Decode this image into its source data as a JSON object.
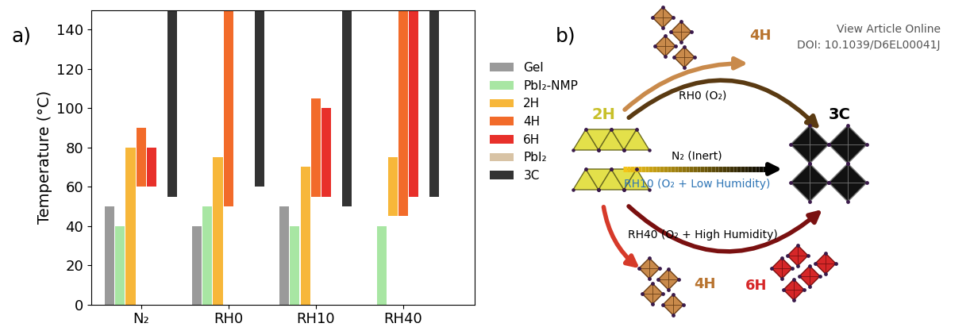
{
  "chart_data": {
    "type": "bar",
    "panel_label": "a)",
    "y_label": "Temperature (°C)",
    "categories": [
      "N₂",
      "RH0",
      "RH10",
      "RH40"
    ],
    "ylim": [
      0,
      150
    ],
    "yticks": [
      0,
      20,
      40,
      60,
      80,
      100,
      120,
      140
    ],
    "legend": "right",
    "series": [
      {
        "name": "Gel",
        "color": "#9a9a9a",
        "values": [
          [
            0,
            50
          ],
          [
            0,
            40
          ],
          [
            0,
            50
          ],
          null
        ]
      },
      {
        "name": "PbI₂-NMP",
        "color": "#a8e6a3",
        "values": [
          [
            0,
            40
          ],
          [
            0,
            50
          ],
          [
            0,
            40
          ],
          [
            0,
            40
          ]
        ]
      },
      {
        "name": "2H",
        "color": "#f7b73a",
        "values": [
          [
            0,
            80
          ],
          [
            0,
            75
          ],
          [
            0,
            70
          ],
          [
            45,
            75
          ]
        ]
      },
      {
        "name": "4H",
        "color": "#f26b2a",
        "values": [
          [
            60,
            90
          ],
          [
            50,
            150
          ],
          [
            55,
            105
          ],
          [
            45,
            150
          ]
        ]
      },
      {
        "name": "6H",
        "color": "#e8302a",
        "values": [
          [
            60,
            80
          ],
          null,
          [
            55,
            100
          ],
          [
            55,
            150
          ]
        ]
      },
      {
        "name": "PbI₂",
        "color": "#d8c3a5",
        "values": [
          null,
          null,
          null,
          null
        ]
      },
      {
        "name": "3C",
        "color": "#333333",
        "values": [
          [
            55,
            150
          ],
          [
            60,
            150
          ],
          [
            50,
            150
          ],
          [
            55,
            150
          ]
        ]
      }
    ]
  },
  "diagram": {
    "panel_label": "b)",
    "nodes": {
      "start": "2H",
      "end": "3C",
      "top_product": "4H",
      "bottom_products": [
        "4H",
        "6H"
      ]
    },
    "paths": {
      "top": "RH0 (O₂)",
      "middle": [
        "N₂ (Inert)",
        "RH10 (O₂ + Low Humidity)"
      ],
      "bottom": "RH40 (O₂ + High Humidity)"
    },
    "page_header": [
      "View Article Online",
      "DOI: 10.1039/D6EL00041J"
    ]
  }
}
